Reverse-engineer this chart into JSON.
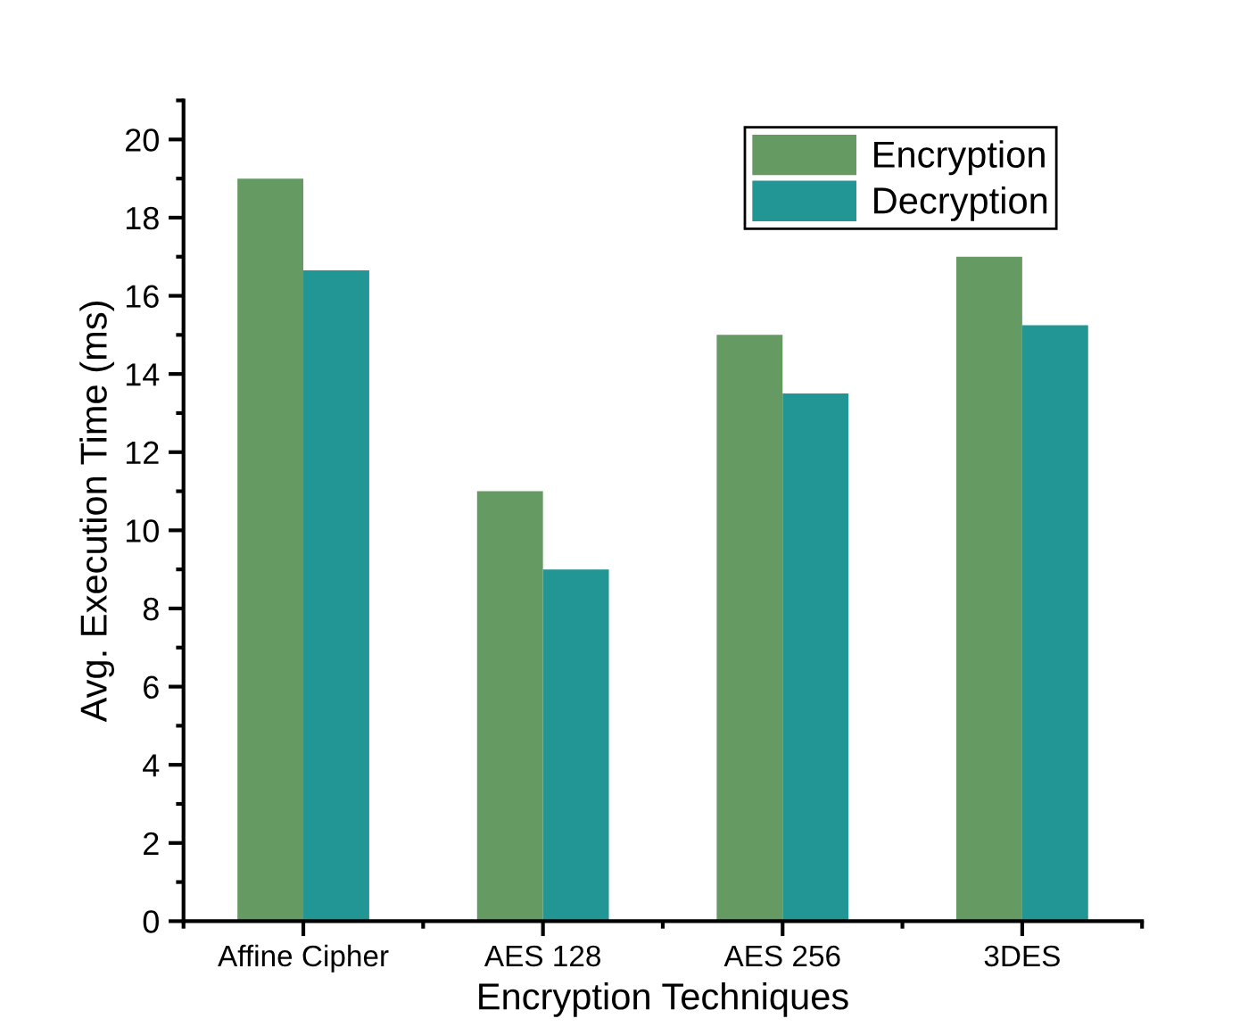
{
  "chart_data": {
    "type": "bar",
    "xlabel": "Encryption Techniques",
    "ylabel": "Avg. Execution Time (ms)",
    "categories": [
      "Affine Cipher",
      "AES 128",
      "AES 256",
      "3DES"
    ],
    "series": [
      {
        "name": "Encryption",
        "color": "#659a63",
        "values": [
          19,
          11,
          15,
          17
        ]
      },
      {
        "name": "Decryption",
        "color": "#219695",
        "values": [
          16.65,
          9,
          13.5,
          15.25
        ]
      }
    ],
    "ylim": [
      0,
      21
    ],
    "yticks": [
      0,
      2,
      4,
      6,
      8,
      10,
      12,
      14,
      16,
      18,
      20
    ],
    "grid": false,
    "legend": "top right"
  }
}
